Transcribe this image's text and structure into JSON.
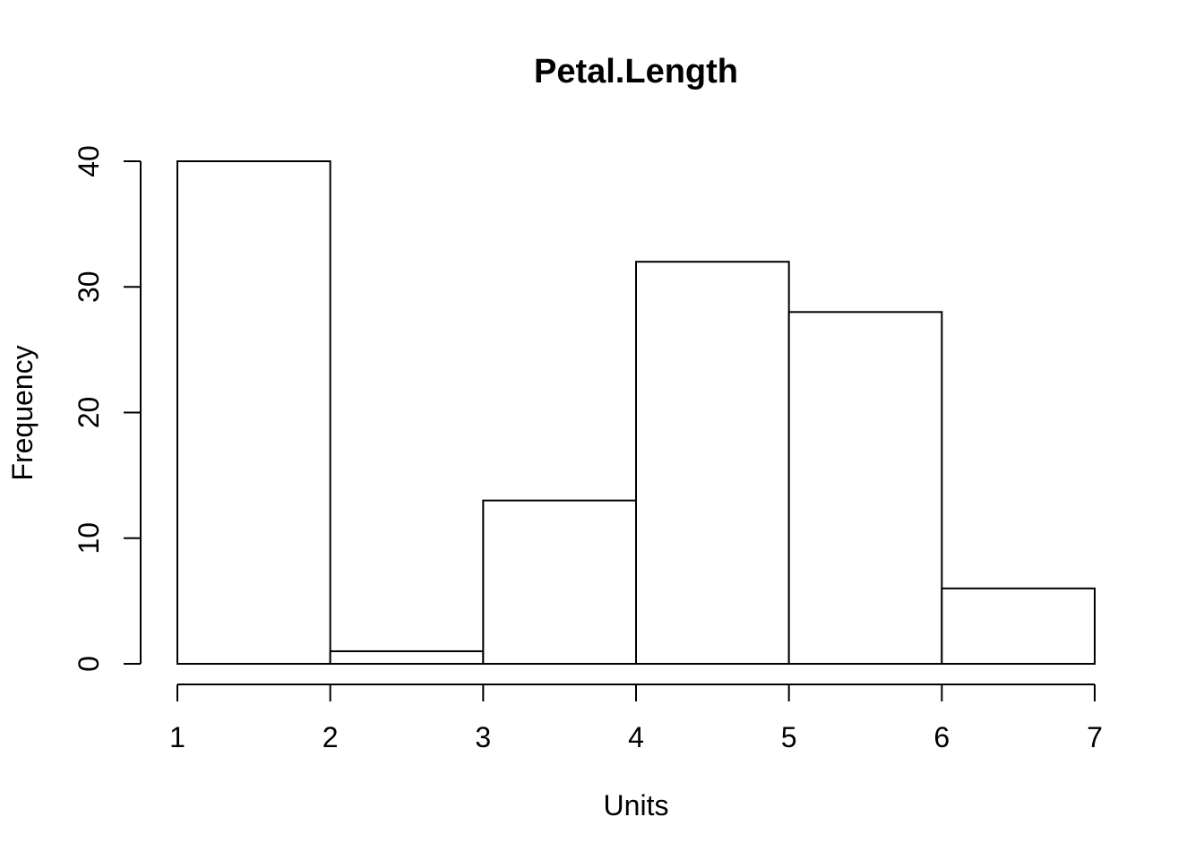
{
  "chart_data": {
    "type": "bar",
    "title": "Petal.Length",
    "xlabel": "Units",
    "ylabel": "Frequency",
    "bins": [
      {
        "from": 1,
        "to": 2,
        "count": 40
      },
      {
        "from": 2,
        "to": 3,
        "count": 1
      },
      {
        "from": 3,
        "to": 4,
        "count": 13
      },
      {
        "from": 4,
        "to": 5,
        "count": 32
      },
      {
        "from": 5,
        "to": 6,
        "count": 28
      },
      {
        "from": 6,
        "to": 7,
        "count": 6
      }
    ],
    "xlim": [
      1,
      7
    ],
    "ylim": [
      0,
      40
    ],
    "x_ticks": [
      "1",
      "2",
      "3",
      "4",
      "5",
      "6",
      "7"
    ],
    "y_ticks": [
      "0",
      "10",
      "20",
      "30",
      "40"
    ],
    "grid": false,
    "bar_fill": "#ffffff",
    "bar_stroke": "#000000"
  }
}
